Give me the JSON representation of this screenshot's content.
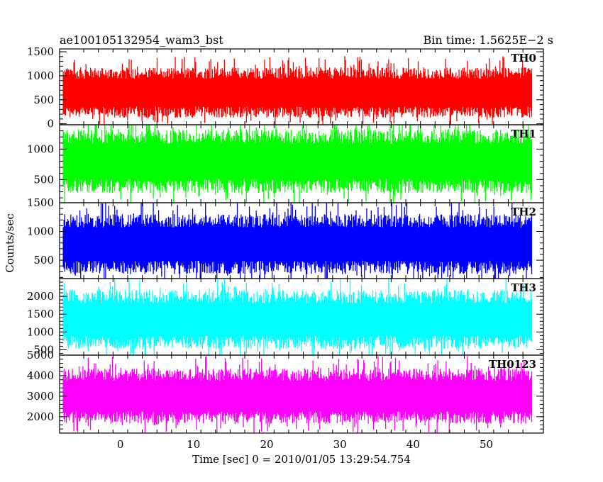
{
  "header": {
    "title": "ae100105132954_wam3_bst",
    "bin_time": "Bin time: 1.5625E−2 s"
  },
  "chart_data": {
    "type": "line",
    "title": "ae100105132954_wam3_bst",
    "subtitle": "Bin time: 1.5625E−2 s",
    "xlabel": "Time [sec] 0 = 2010/01/05 13:29:54.754",
    "ylabel": "Counts/sec",
    "xlim": [
      -8.3,
      57.8
    ],
    "x_data_range": [
      -7.8,
      56.2
    ],
    "bin_time": 0.015625,
    "x_ticks": [
      0,
      10,
      20,
      30,
      40,
      50
    ],
    "x_tick_labels": [
      "0",
      "10",
      "20",
      "30",
      "40",
      "50"
    ],
    "grid": false,
    "panels": [
      {
        "name": "TH0",
        "color": "#ff0000",
        "ylim": [
          -20,
          1560
        ],
        "y_ticks": [
          0,
          500,
          1000,
          1500
        ],
        "y_tick_labels": [
          "0",
          "500",
          "1000",
          "1500"
        ],
        "mean": 650,
        "envelope": [
          150,
          1200
        ]
      },
      {
        "name": "TH1",
        "color": "#00ff00",
        "ylim": [
          120,
          1400
        ],
        "y_ticks": [
          500,
          1000
        ],
        "y_tick_labels": [
          "500",
          "1000"
        ],
        "mean": 800,
        "envelope": [
          250,
          1300
        ]
      },
      {
        "name": "TH2",
        "color": "#0000ff",
        "ylim": [
          180,
          1500
        ],
        "y_ticks": [
          500,
          1000,
          1500
        ],
        "y_tick_labels": [
          "500",
          "1000",
          "1500"
        ],
        "mean": 780,
        "envelope": [
          300,
          1350
        ]
      },
      {
        "name": "TH3",
        "color": "#00ffff",
        "ylim": [
          350,
          2500
        ],
        "y_ticks": [
          500,
          1000,
          1500,
          2000
        ],
        "y_tick_labels": [
          "500",
          "1000",
          "1500",
          "2000"
        ],
        "mean": 1350,
        "envelope": [
          550,
          2200
        ]
      },
      {
        "name": "TH0123",
        "color": "#ff00ff",
        "ylim": [
          1200,
          5000
        ],
        "y_ticks": [
          2000,
          3000,
          4000,
          5000
        ],
        "y_tick_labels": [
          "2000",
          "3000",
          "4000",
          "5000"
        ],
        "mean": 3000,
        "envelope": [
          1700,
          4400
        ]
      }
    ]
  }
}
